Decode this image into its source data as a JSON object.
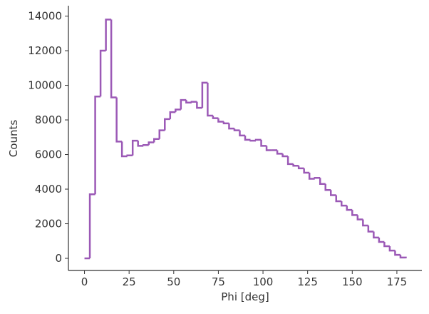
{
  "chart_data": {
    "type": "histogram",
    "x_label": "Phi [deg]",
    "y_label": "Counts",
    "color": "#9b59b6",
    "bins": [
      0,
      3,
      6,
      9,
      12,
      15,
      18,
      21,
      24,
      27,
      30,
      33,
      36,
      39,
      42,
      45,
      48,
      51,
      54,
      57,
      60,
      63,
      66,
      69,
      72,
      75,
      78,
      81,
      84,
      87,
      90,
      93,
      96,
      99,
      102,
      105,
      108,
      111,
      114,
      117,
      120,
      123,
      126,
      129,
      132,
      135,
      138,
      141,
      144,
      147,
      150,
      153,
      156,
      159,
      162,
      165,
      168,
      171,
      174,
      177,
      180
    ],
    "values": [
      0,
      3700,
      9350,
      12000,
      13800,
      9300,
      6750,
      5900,
      5950,
      6800,
      6500,
      6550,
      6700,
      6900,
      7400,
      8050,
      8450,
      8600,
      9150,
      9000,
      9050,
      8700,
      10150,
      8250,
      8100,
      7900,
      7800,
      7500,
      7400,
      7100,
      6850,
      6800,
      6850,
      6500,
      6250,
      6250,
      6050,
      5900,
      5450,
      5350,
      5200,
      4950,
      4600,
      4650,
      4300,
      3950,
      3650,
      3300,
      3050,
      2800,
      2500,
      2250,
      1900,
      1550,
      1200,
      950,
      700,
      450,
      200,
      50
    ],
    "xlim": [
      -9,
      189
    ],
    "ylim": [
      -700,
      14600
    ],
    "xticks": [
      0,
      25,
      50,
      75,
      100,
      125,
      150,
      175
    ],
    "yticks": [
      0,
      2000,
      4000,
      6000,
      8000,
      10000,
      12000,
      14000
    ]
  }
}
